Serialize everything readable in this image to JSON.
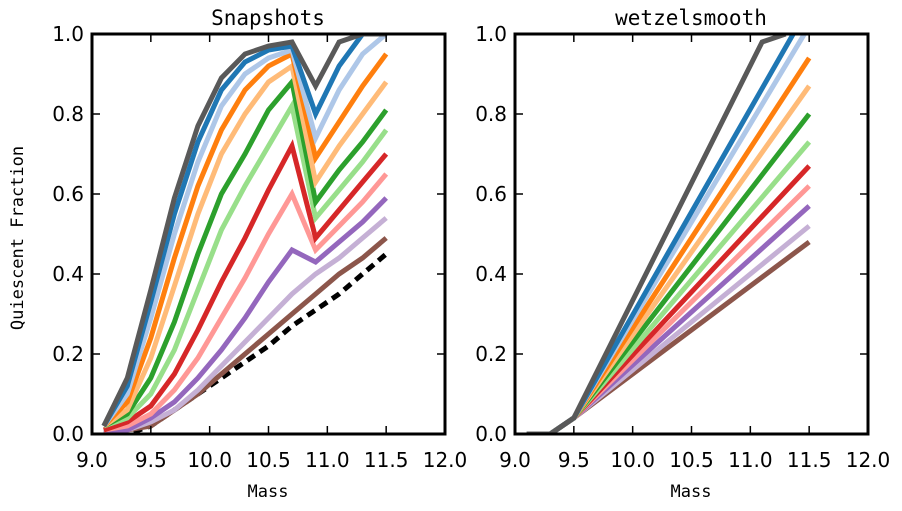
{
  "chart_data": [
    {
      "type": "line",
      "title": "Snapshots",
      "xlabel": "Mass",
      "ylabel": "Quiescent Fraction",
      "xlim": [
        9.0,
        12.0
      ],
      "ylim": [
        0.0,
        1.0
      ],
      "xticks": [
        "9.0",
        "9.5",
        "10.0",
        "10.5",
        "11.0",
        "11.5",
        "12.0"
      ],
      "yticks": [
        "0.0",
        "0.2",
        "0.4",
        "0.6",
        "0.8",
        "1.0"
      ],
      "grid": false,
      "x": [
        9.1,
        9.3,
        9.5,
        9.7,
        9.9,
        10.1,
        10.3,
        10.5,
        10.7,
        10.9,
        11.1,
        11.3,
        11.5
      ],
      "reference_line": {
        "style": "dashed",
        "color": "#000000",
        "x": [
          9.1,
          9.3,
          9.5,
          9.7,
          9.9,
          10.1,
          10.3,
          10.5,
          10.7,
          10.9,
          11.1,
          11.3,
          11.5
        ],
        "values": [
          0.0,
          0.0,
          0.02,
          0.06,
          0.1,
          0.14,
          0.18,
          0.22,
          0.27,
          0.31,
          0.35,
          0.4,
          0.45
        ]
      },
      "series": [
        {
          "color": "#595959",
          "values": [
            0.02,
            0.14,
            0.36,
            0.59,
            0.77,
            0.89,
            0.95,
            0.97,
            0.98,
            0.87,
            0.98,
            1.0,
            1.0
          ]
        },
        {
          "color": "#1f77b4",
          "values": [
            0.02,
            0.12,
            0.33,
            0.55,
            0.73,
            0.86,
            0.93,
            0.96,
            0.97,
            0.8,
            0.92,
            1.0,
            1.0
          ]
        },
        {
          "color": "#aec7e8",
          "values": [
            0.02,
            0.1,
            0.29,
            0.5,
            0.68,
            0.82,
            0.9,
            0.94,
            0.96,
            0.74,
            0.86,
            0.95,
            1.0
          ]
        },
        {
          "color": "#ff7f0e",
          "values": [
            0.02,
            0.08,
            0.24,
            0.44,
            0.62,
            0.76,
            0.86,
            0.92,
            0.95,
            0.69,
            0.78,
            0.87,
            0.95
          ]
        },
        {
          "color": "#ffbb78",
          "values": [
            0.02,
            0.06,
            0.19,
            0.37,
            0.55,
            0.7,
            0.8,
            0.88,
            0.92,
            0.63,
            0.72,
            0.8,
            0.88
          ]
        },
        {
          "color": "#2ca02c",
          "values": [
            0.02,
            0.05,
            0.14,
            0.28,
            0.45,
            0.6,
            0.7,
            0.81,
            0.88,
            0.58,
            0.66,
            0.73,
            0.81
          ]
        },
        {
          "color": "#98df8a",
          "values": [
            0.02,
            0.04,
            0.1,
            0.21,
            0.36,
            0.51,
            0.62,
            0.72,
            0.82,
            0.54,
            0.61,
            0.68,
            0.76
          ]
        },
        {
          "color": "#d62728",
          "values": [
            0.01,
            0.03,
            0.07,
            0.15,
            0.26,
            0.38,
            0.49,
            0.61,
            0.72,
            0.49,
            0.56,
            0.63,
            0.7
          ]
        },
        {
          "color": "#ff9896",
          "values": [
            0.01,
            0.02,
            0.05,
            0.11,
            0.19,
            0.29,
            0.39,
            0.5,
            0.6,
            0.46,
            0.52,
            0.58,
            0.65
          ]
        },
        {
          "color": "#9467bd",
          "values": [
            0.01,
            0.01,
            0.04,
            0.08,
            0.14,
            0.21,
            0.29,
            0.38,
            0.46,
            0.43,
            0.48,
            0.53,
            0.59
          ]
        },
        {
          "color": "#c5b0d5",
          "values": [
            0.01,
            0.01,
            0.03,
            0.06,
            0.11,
            0.17,
            0.23,
            0.29,
            0.35,
            0.4,
            0.44,
            0.49,
            0.54
          ]
        },
        {
          "color": "#8c564b",
          "values": [
            0.01,
            0.01,
            0.02,
            0.06,
            0.1,
            0.15,
            0.2,
            0.25,
            0.3,
            0.35,
            0.4,
            0.44,
            0.49
          ]
        }
      ]
    },
    {
      "type": "line",
      "title": "wetzelsmooth",
      "xlabel": "Mass",
      "ylabel": "",
      "xlim": [
        9.0,
        12.0
      ],
      "ylim": [
        0.0,
        1.0
      ],
      "xticks": [
        "9.0",
        "9.5",
        "10.0",
        "10.5",
        "11.0",
        "11.5",
        "12.0"
      ],
      "yticks": [
        "0.0",
        "0.2",
        "0.4",
        "0.6",
        "0.8",
        "1.0"
      ],
      "grid": false,
      "x": [
        9.1,
        9.3,
        9.5,
        11.5
      ],
      "series": [
        {
          "color": "#595959",
          "x": [
            9.1,
            9.3,
            9.5,
            11.1,
            11.3
          ],
          "values": [
            0.0,
            0.0,
            0.04,
            0.98,
            1.0
          ]
        },
        {
          "color": "#1f77b4",
          "values": [
            0.0,
            0.0,
            0.04,
            1.07
          ]
        },
        {
          "color": "#aec7e8",
          "values": [
            0.0,
            0.0,
            0.04,
            1.02
          ]
        },
        {
          "color": "#ff7f0e",
          "values": [
            0.0,
            0.0,
            0.04,
            0.94
          ]
        },
        {
          "color": "#ffbb78",
          "values": [
            0.0,
            0.0,
            0.04,
            0.87
          ]
        },
        {
          "color": "#2ca02c",
          "values": [
            0.0,
            0.0,
            0.04,
            0.8
          ]
        },
        {
          "color": "#98df8a",
          "values": [
            0.0,
            0.0,
            0.04,
            0.73
          ]
        },
        {
          "color": "#d62728",
          "values": [
            0.0,
            0.0,
            0.04,
            0.67
          ]
        },
        {
          "color": "#ff9896",
          "values": [
            0.0,
            0.0,
            0.04,
            0.62
          ]
        },
        {
          "color": "#9467bd",
          "values": [
            0.0,
            0.0,
            0.04,
            0.57
          ]
        },
        {
          "color": "#c5b0d5",
          "values": [
            0.0,
            0.0,
            0.04,
            0.52
          ]
        },
        {
          "color": "#8c564b",
          "values": [
            0.0,
            0.0,
            0.04,
            0.48
          ]
        }
      ]
    }
  ]
}
